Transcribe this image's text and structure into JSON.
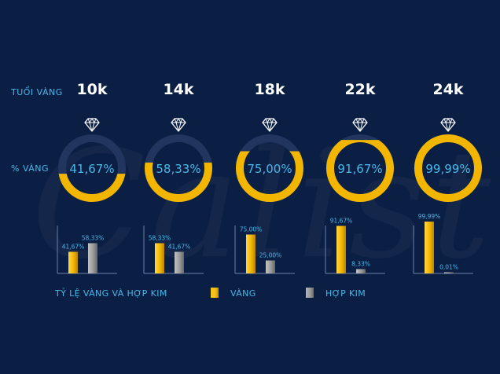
{
  "labels": {
    "age": "TUỔI VÀNG",
    "gold_pct": "% VÀNG",
    "ratio_title": "TỶ LỆ VÀNG VÀ HỢP KIM"
  },
  "legend": {
    "gold": "VÀNG",
    "alloy": "HỢP KIM"
  },
  "watermark": "Calista",
  "colors": {
    "background": "#0b1f44",
    "gold": "#f2b600",
    "gold_light": "#ffd64a",
    "alloy": "#8c8c8c",
    "alloy_light": "#b8b8b8",
    "ring_track": "#22355f",
    "accent_text": "#49b7e8"
  },
  "icons": [
    "diamond-icon"
  ],
  "chart_data": {
    "type": "bar",
    "categories": [
      "10k",
      "14k",
      "18k",
      "22k",
      "24k"
    ],
    "gold_percent_labels": [
      "41,67%",
      "58,33%",
      "75,00%",
      "91,67%",
      "99,99%"
    ],
    "series": [
      {
        "name": "VÀNG",
        "values": [
          41.67,
          58.33,
          75.0,
          91.67,
          99.99
        ],
        "labels": [
          "41,67%",
          "58,33%",
          "75,00%",
          "91,67%",
          "99,99%"
        ]
      },
      {
        "name": "HỢP KIM",
        "values": [
          58.33,
          41.67,
          25.0,
          8.33,
          0.01
        ],
        "labels": [
          "58,33%",
          "41,67%",
          "25,00%",
          "8,33%",
          "0,01%"
        ]
      }
    ],
    "ylim": [
      0,
      100
    ]
  }
}
